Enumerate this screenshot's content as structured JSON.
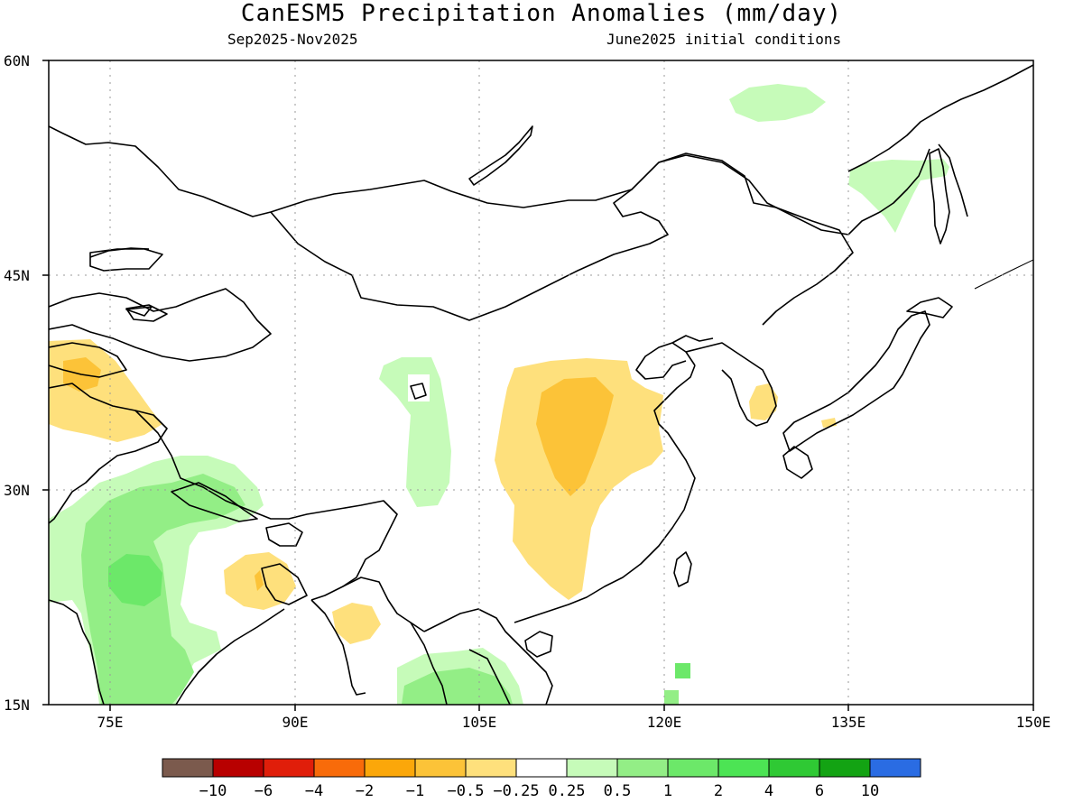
{
  "title": "CanESM5 Precipitation Anomalies (mm/day)",
  "subtitle_left": "Sep2025-Nov2025",
  "subtitle_right": "June2025 initial conditions",
  "axes": {
    "lat_labels": [
      "60N",
      "45N",
      "30N",
      "15N"
    ],
    "lon_labels": [
      "75E",
      "90E",
      "105E",
      "120E",
      "135E",
      "150E"
    ],
    "lat_range": [
      15,
      60
    ],
    "lon_range": [
      70,
      150
    ]
  },
  "colorbar": {
    "colors": [
      "#7b5a4d",
      "#b80000",
      "#e01e0a",
      "#f86b0a",
      "#fba70a",
      "#fcc338",
      "#fee07c",
      "#ffffff",
      "#c6fbb9",
      "#93ee86",
      "#6ce869",
      "#4ce454",
      "#2fc934",
      "#13a313",
      "#2a6ce3"
    ],
    "tick_labels": [
      "−10",
      "−6",
      "−4",
      "−2",
      "−1",
      "−0.5",
      "−0.25",
      "0.25",
      "0.5",
      "1",
      "2",
      "4",
      "6",
      "10"
    ]
  }
}
